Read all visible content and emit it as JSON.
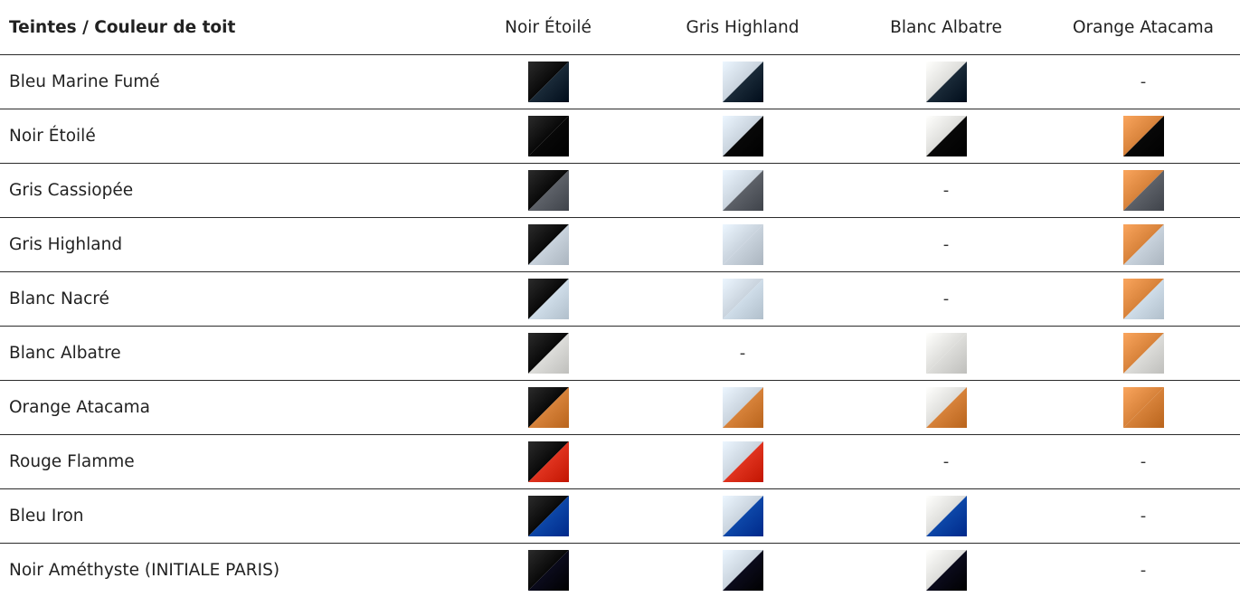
{
  "header": {
    "label": "Teintes / Couleur de toit",
    "columns": [
      "Noir Étoilé",
      "Gris Highland",
      "Blanc Albatre",
      "Orange Atacama"
    ]
  },
  "colors": {
    "Noir Étoilé": "#080808",
    "Gris Highland": "#c9d3dd",
    "Blanc Albatre": "#ddddda",
    "Orange Atacama": "#d7823a",
    "Bleu Marine Fumé": "#1a2a38",
    "Gris Cassiopée": "#5d6168",
    "Blanc Nacré": "#cfdde9",
    "Rouge Flamme": "#e0331f",
    "Bleu Iron": "#0d47a8",
    "Noir Améthyste": "#0b0b1c"
  },
  "rows": [
    {
      "label": "Bleu Marine Fumé",
      "cells": [
        {
          "roof": "Noir Étoilé",
          "body": "Bleu Marine Fumé"
        },
        {
          "roof": "Gris Highland",
          "body": "Bleu Marine Fumé"
        },
        {
          "roof": "Blanc Albatre",
          "body": "Bleu Marine Fumé"
        },
        {
          "empty": "-"
        }
      ]
    },
    {
      "label": "Noir Étoilé",
      "cells": [
        {
          "roof": "Noir Étoilé",
          "body": "Noir Étoilé"
        },
        {
          "roof": "Gris Highland",
          "body": "Noir Étoilé"
        },
        {
          "roof": "Blanc Albatre",
          "body": "Noir Étoilé"
        },
        {
          "roof": "Orange Atacama",
          "body": "Noir Étoilé"
        }
      ]
    },
    {
      "label": "Gris Cassiopée",
      "cells": [
        {
          "roof": "Noir Étoilé",
          "body": "Gris Cassiopée"
        },
        {
          "roof": "Gris Highland",
          "body": "Gris Cassiopée"
        },
        {
          "empty": "-"
        },
        {
          "roof": "Orange Atacama",
          "body": "Gris Cassiopée"
        }
      ]
    },
    {
      "label": "Gris Highland",
      "cells": [
        {
          "roof": "Noir Étoilé",
          "body": "Gris Highland"
        },
        {
          "roof": "Gris Highland",
          "body": "Gris Highland"
        },
        {
          "empty": "-"
        },
        {
          "roof": "Orange Atacama",
          "body": "Gris Highland"
        }
      ]
    },
    {
      "label": "Blanc Nacré",
      "cells": [
        {
          "roof": "Noir Étoilé",
          "body": "Blanc Nacré"
        },
        {
          "roof": "Gris Highland",
          "body": "Blanc Nacré"
        },
        {
          "empty": "-"
        },
        {
          "roof": "Orange Atacama",
          "body": "Blanc Nacré"
        }
      ]
    },
    {
      "label": "Blanc Albatre",
      "cells": [
        {
          "roof": "Noir Étoilé",
          "body": "Blanc Albatre"
        },
        {
          "empty": "-"
        },
        {
          "roof": "Blanc Albatre",
          "body": "Blanc Albatre"
        },
        {
          "roof": "Orange Atacama",
          "body": "Blanc Albatre"
        }
      ]
    },
    {
      "label": "Orange Atacama",
      "cells": [
        {
          "roof": "Noir Étoilé",
          "body": "Orange Atacama"
        },
        {
          "roof": "Gris Highland",
          "body": "Orange Atacama"
        },
        {
          "roof": "Blanc Albatre",
          "body": "Orange Atacama"
        },
        {
          "roof": "Orange Atacama",
          "body": "Orange Atacama"
        }
      ]
    },
    {
      "label": "Rouge Flamme",
      "cells": [
        {
          "roof": "Noir Étoilé",
          "body": "Rouge Flamme"
        },
        {
          "roof": "Gris Highland",
          "body": "Rouge Flamme"
        },
        {
          "empty": "-"
        },
        {
          "empty": "-"
        }
      ]
    },
    {
      "label": "Bleu Iron",
      "cells": [
        {
          "roof": "Noir Étoilé",
          "body": "Bleu Iron"
        },
        {
          "roof": "Gris Highland",
          "body": "Bleu Iron"
        },
        {
          "roof": "Blanc Albatre",
          "body": "Bleu Iron"
        },
        {
          "empty": "-"
        }
      ]
    },
    {
      "label": "Noir Améthyste (INITIALE PARIS)",
      "cells": [
        {
          "roof": "Noir Étoilé",
          "body": "Noir Améthyste"
        },
        {
          "roof": "Gris Highland",
          "body": "Noir Améthyste"
        },
        {
          "roof": "Blanc Albatre",
          "body": "Noir Améthyste"
        },
        {
          "empty": "-"
        }
      ]
    }
  ]
}
